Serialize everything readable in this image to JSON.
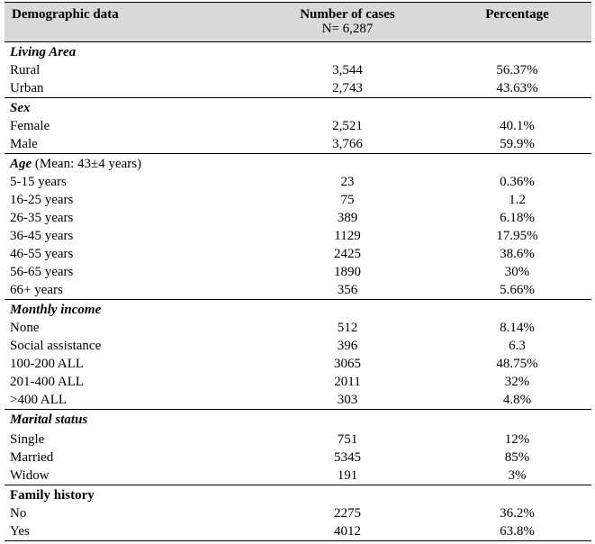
{
  "header": {
    "col1": "Demographic data",
    "col2": "Number of cases",
    "col2_sub": "N= 6,287",
    "col3": "Percentage"
  },
  "sections": [
    {
      "title": "Living Area",
      "note": "",
      "rows": [
        {
          "label": "Rural",
          "count": "3,544",
          "pct": "56.37%"
        },
        {
          "label": "Urban",
          "count": "2,743",
          "pct": "43.63%"
        }
      ]
    },
    {
      "title": "Sex",
      "note": "",
      "rows": [
        {
          "label": "Female",
          "count": "2,521",
          "pct": "40.1%"
        },
        {
          "label": "Male",
          "count": "3,766",
          "pct": "59.9%"
        }
      ]
    },
    {
      "title": "Age",
      "note": " (Mean: 43±4 years)",
      "rows": [
        {
          "label": "5-15 years",
          "count": "23",
          "pct": "0.36%"
        },
        {
          "label": "16-25 years",
          "count": "75",
          "pct": "1.2"
        },
        {
          "label": "26-35 years",
          "count": "389",
          "pct": "6.18%"
        },
        {
          "label": "36-45 years",
          "count": "1129",
          "pct": "17.95%"
        },
        {
          "label": "46-55 years",
          "count": "2425",
          "pct": "38.6%"
        },
        {
          "label": "56-65 years",
          "count": "1890",
          "pct": "30%"
        },
        {
          "label": "66+ years",
          "count": "356",
          "pct": "5.66%"
        }
      ]
    },
    {
      "title": "Monthly income",
      "note": "",
      "rows": [
        {
          "label": "None",
          "count": "512",
          "pct": "8.14%"
        },
        {
          "label": "Social assistance",
          "count": "396",
          "pct": "6.3"
        },
        {
          "label": "100-200 ALL",
          "count": "3065",
          "pct": "48.75%"
        },
        {
          "label": "201-400 ALL",
          "count": "2011",
          "pct": "32%"
        },
        {
          "label": ">400 ALL",
          "count": "303",
          "pct": "4.8%"
        }
      ]
    },
    {
      "title": "Marital status",
      "note": "",
      "tall": true,
      "rows": [
        {
          "label": "Single",
          "count": "751",
          "pct": "12%"
        },
        {
          "label": "Married",
          "count": "5345",
          "pct": "85%"
        },
        {
          "label": "Widow",
          "count": "191",
          "pct": "3%"
        }
      ]
    },
    {
      "title": "Family history",
      "note": "",
      "plain": true,
      "rows": [
        {
          "label": "No",
          "count": "2275",
          "pct": "36.2%"
        },
        {
          "label": "Yes",
          "count": "4012",
          "pct": "63.8%"
        }
      ]
    }
  ]
}
